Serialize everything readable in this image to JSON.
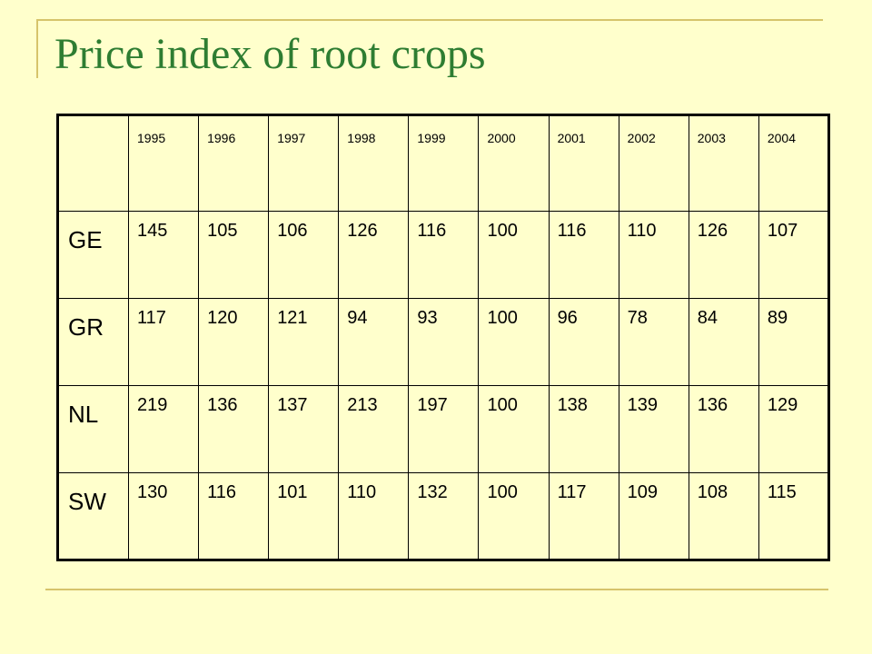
{
  "title": "Price index of root crops",
  "table": {
    "years": [
      "1995",
      "1996",
      "1997",
      "1998",
      "1999",
      "2000",
      "2001",
      "2002",
      "2003",
      "2004"
    ],
    "rows": [
      {
        "country": "GE",
        "values": [
          "145",
          "105",
          "106",
          "126",
          "116",
          "100",
          "116",
          "110",
          "126",
          "107"
        ]
      },
      {
        "country": "GR",
        "values": [
          "117",
          "120",
          "121",
          "94",
          "93",
          "100",
          "96",
          "78",
          "84",
          "89"
        ]
      },
      {
        "country": "NL",
        "values": [
          "219",
          "136",
          "137",
          "213",
          "197",
          "100",
          "138",
          "139",
          "136",
          "129"
        ]
      },
      {
        "country": "SW",
        "values": [
          "130",
          "116",
          "101",
          "110",
          "132",
          "100",
          "117",
          "109",
          "108",
          "115"
        ]
      }
    ]
  },
  "colors": {
    "background": "#FFFFCC",
    "title": "#2E7D32",
    "decor_lines": "#D6C46B"
  }
}
